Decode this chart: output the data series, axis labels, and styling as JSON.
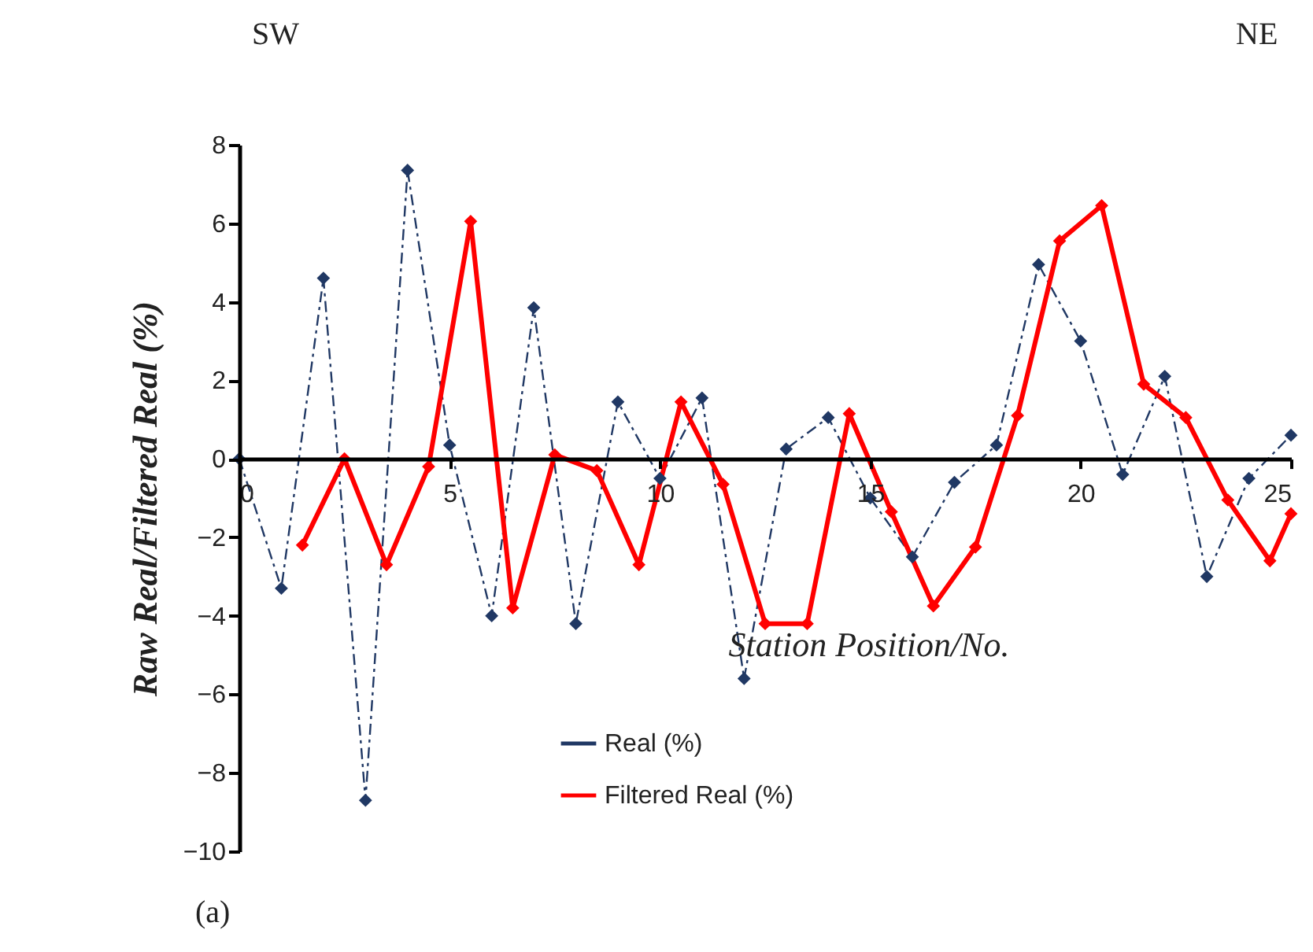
{
  "chart_data": {
    "type": "line",
    "xlabel": "Station Position/No.",
    "ylabel": "Raw Real/Filtered Real (%)",
    "annotations": [
      "SW",
      "NE",
      "(a)"
    ],
    "xlim": [
      0,
      25
    ],
    "xticks": [
      0,
      5,
      10,
      15,
      20,
      25
    ],
    "ylim": [
      -10,
      8
    ],
    "yticks": [
      -10,
      -8,
      -6,
      -4,
      -2,
      0,
      2,
      4,
      6,
      8
    ],
    "grid": false,
    "legend": "bottom",
    "marker": "diamond",
    "series": [
      {
        "name": "Real (%)",
        "color": "#203864",
        "line_style": "dashed",
        "x": [
          0,
          1,
          2,
          3,
          4,
          5,
          6,
          7,
          8,
          9,
          10,
          11,
          12,
          13,
          14,
          15,
          16,
          17,
          18,
          19,
          20,
          21,
          22,
          23,
          24,
          25
        ],
        "values": [
          0,
          -3.3,
          4.6,
          -8.7,
          7.35,
          0.35,
          -4.0,
          3.85,
          -4.2,
          1.45,
          -0.5,
          1.55,
          -5.6,
          0.25,
          1.05,
          -1.0,
          -2.5,
          -0.6,
          0.35,
          4.95,
          3.0,
          -0.4,
          2.1,
          -3.0,
          -0.5,
          0.6
        ]
      },
      {
        "name": "Filtered Real (%)",
        "color": "#ff0000",
        "line_style": "solid",
        "x": [
          1.5,
          2.5,
          3.5,
          4.5,
          5.5,
          6.5,
          7.5,
          8.5,
          9.5,
          10.5,
          11.5,
          12.5,
          13.5,
          14.5,
          15.5,
          16.5,
          17.5,
          18.5,
          19.5,
          20.5,
          21.5,
          22.5,
          23.5,
          24.5,
          25
        ],
        "values": [
          -2.2,
          0,
          -2.7,
          -0.2,
          6.05,
          -3.8,
          0.1,
          -0.3,
          -2.7,
          1.45,
          -0.65,
          -4.2,
          -4.2,
          1.15,
          -1.35,
          -3.75,
          -2.25,
          1.1,
          5.55,
          6.45,
          1.9,
          1.05,
          -1.05,
          -2.6,
          -1.4
        ]
      }
    ]
  }
}
